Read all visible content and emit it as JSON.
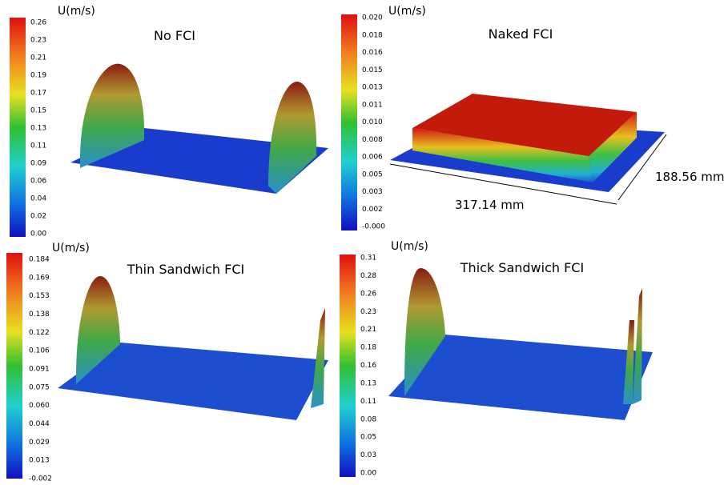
{
  "panels": [
    {
      "unit": "U(m/s)",
      "title": "No FCI",
      "colorbar_ticks": [
        "0.26",
        "0.23",
        "0.21",
        "0.19",
        "0.17",
        "0.15",
        "0.13",
        "0.11",
        "0.09",
        "0.06",
        "0.04",
        "0.02",
        "0.00"
      ]
    },
    {
      "unit": "U(m/s)",
      "title": "Naked FCI",
      "colorbar_ticks": [
        "0.020",
        "0.018",
        "0.016",
        "0.015",
        "0.013",
        "0.011",
        "0.010",
        "0.008",
        "0.006",
        "0.005",
        "0.003",
        "0.002",
        "-0.000"
      ],
      "dimensions": [
        "317.14 mm",
        "188.56 mm"
      ]
    },
    {
      "unit": "U(m/s)",
      "title": "Thin Sandwich FCI",
      "colorbar_ticks": [
        "0.184",
        "0.169",
        "0.153",
        "0.138",
        "0.122",
        "0.106",
        "0.091",
        "0.075",
        "0.060",
        "0.044",
        "0.029",
        "0.013",
        "-0.002"
      ]
    },
    {
      "unit": "U(m/s)",
      "title": "Thick Sandwich FCI",
      "colorbar_ticks": [
        "0.31",
        "0.28",
        "0.26",
        "0.23",
        "0.21",
        "0.18",
        "0.16",
        "0.13",
        "0.11",
        "0.08",
        "0.05",
        "0.03",
        "0.00"
      ]
    }
  ]
}
